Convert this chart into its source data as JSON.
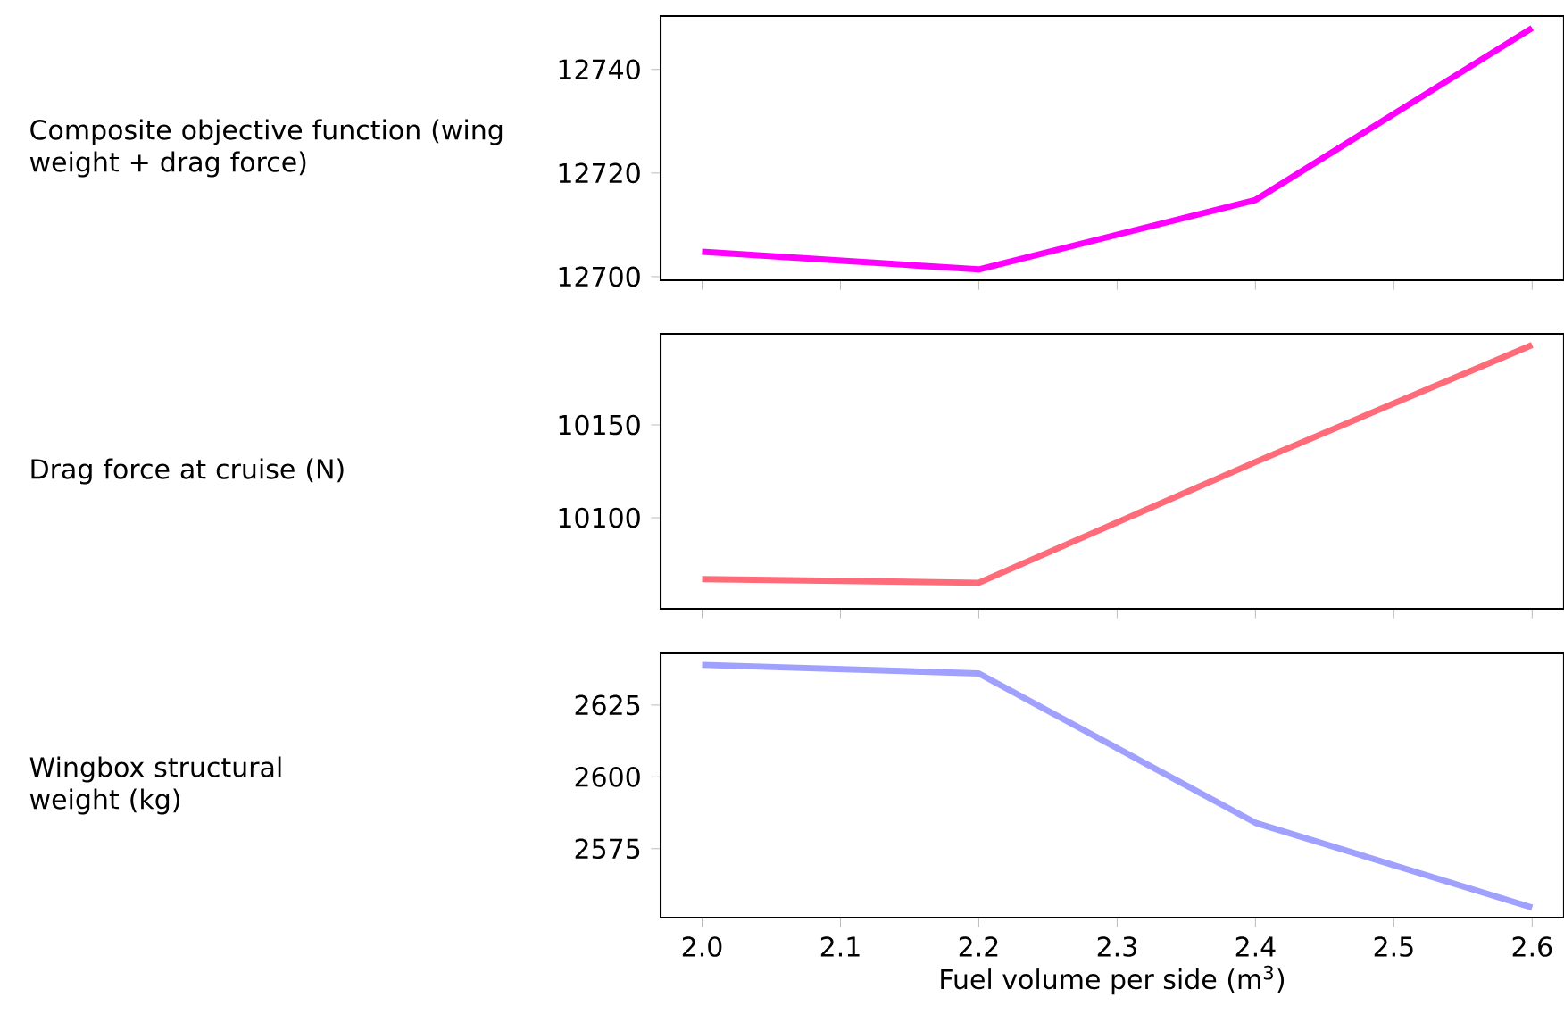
{
  "chart_data": [
    {
      "type": "line",
      "ylabel": "Composite objective function (wing weight + drag force)",
      "categories": [
        null,
        null,
        null,
        null
      ],
      "series": [
        {
          "color": "#ff00ff",
          "values": [
            12704.8,
            12701.4,
            12714.8,
            12748
          ]
        }
      ],
      "ylim": [
        12699.3,
        12750.3
      ],
      "yticks": [
        12700,
        12720,
        12740
      ],
      "tick_labels": "y"
    },
    {
      "type": "line",
      "ylabel": "Drag force at cruise (N)",
      "categories": [
        null,
        null,
        null,
        null
      ],
      "series": [
        {
          "color": "#ff6b78",
          "values": [
            10067,
            10065,
            10130,
            10193
          ]
        }
      ],
      "ylim": [
        10051,
        10199
      ],
      "yticks": [
        10100,
        10150
      ],
      "tick_labels": "y"
    },
    {
      "type": "line",
      "ylabel": "Wingbox structural weight (kg)",
      "xlabel": "Fuel volume per side (m$^{3}$)",
      "x": [
        2.0,
        2.2,
        2.4,
        2.6
      ],
      "series": [
        {
          "color": "#a0a0ff",
          "values": [
            2639,
            2636,
            2584,
            2554.5
          ]
        }
      ],
      "xlim": [
        1.97,
        2.623
      ],
      "xticks": [
        {
          "value": 2.0,
          "label": "2.0"
        },
        2.1,
        2.2,
        2.3,
        2.4,
        2.5,
        2.6
      ],
      "ylim": [
        2551,
        2643
      ],
      "yticks": [
        2575,
        2600,
        2625
      ]
    }
  ]
}
